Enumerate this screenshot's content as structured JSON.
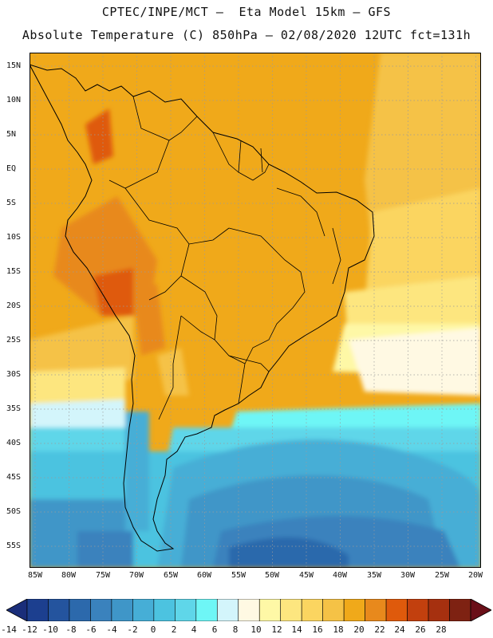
{
  "header": {
    "line1": "CPTEC/INPE/MCT –  Eta Model 15km – GFS",
    "line2": "Absolute Temperature (C) 850hPa – 02/08/2020 12UTC fct=131h"
  },
  "map": {
    "lat_labels": [
      "15N",
      "10N",
      "5N",
      "EQ",
      "5S",
      "10S",
      "15S",
      "20S",
      "25S",
      "30S",
      "35S",
      "40S",
      "45S",
      "50S",
      "55S"
    ],
    "lon_labels": [
      "85W",
      "80W",
      "75W",
      "70W",
      "65W",
      "60W",
      "55W",
      "50W",
      "45W",
      "40W",
      "35W",
      "30W",
      "25W",
      "20W"
    ]
  },
  "colorbar": {
    "labels": [
      "-14",
      "-12",
      "-10",
      "-8",
      "-6",
      "-4",
      "-2",
      "0",
      "2",
      "4",
      "6",
      "8",
      "10",
      "12",
      "14",
      "16",
      "18",
      "20",
      "22",
      "24",
      "26",
      "28"
    ],
    "colors": [
      "#1c3f8f",
      "#24549e",
      "#2c69ac",
      "#3a82bd",
      "#3f96c8",
      "#46aed6",
      "#4cc3e0",
      "#5fd6e9",
      "#6ef6f6",
      "#d3f5fb",
      "#fff9e3",
      "#fef8a6",
      "#fde67f",
      "#fbd560",
      "#f5c246",
      "#f0a91a",
      "#e8891c",
      "#df5a0c",
      "#c2400e",
      "#a6300f",
      "#7e2212"
    ],
    "left_arrow_color": "#1a2e7a",
    "right_arrow_color": "#6a0f18"
  }
}
